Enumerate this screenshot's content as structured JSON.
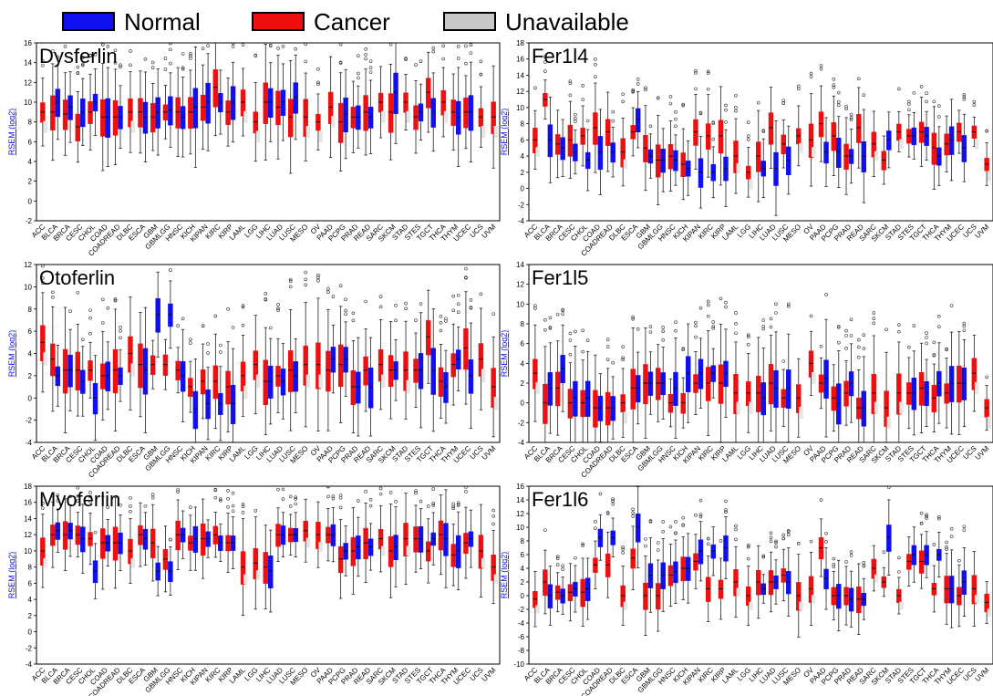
{
  "legend": [
    {
      "label": "Normal",
      "color": "#1010ee"
    },
    {
      "label": "Cancer",
      "color": "#ee1010"
    },
    {
      "label": "Unavailable",
      "color": "#c8c8c8"
    }
  ],
  "colors": {
    "normal": "#1010ee",
    "cancer": "#ee1010",
    "unavailable": "#e6e6e6"
  },
  "categories": [
    "ACC",
    "BLCA",
    "BRCA",
    "CESC",
    "CHOL",
    "COAD",
    "COADREAD",
    "DLBC",
    "ESCA",
    "GBM",
    "GBMLGG",
    "HNSC",
    "KICH",
    "KIPAN",
    "KIRC",
    "KIRP",
    "LAML",
    "LGG",
    "LIHC",
    "LUAD",
    "LUSC",
    "MESO",
    "OV",
    "PAAD",
    "PCPG",
    "PRAD",
    "READ",
    "SARC",
    "SKCM",
    "STAD",
    "STES",
    "TGCT",
    "THCA",
    "THYM",
    "UCEC",
    "UCS",
    "UVM"
  ],
  "chart_data": [
    {
      "type": "box",
      "title": "Dysferlin",
      "ylabel": "RSEM (log2)",
      "ylim": [
        -2,
        16
      ],
      "yticks": [
        "-2",
        "0",
        "2",
        "4",
        "6",
        "8",
        "10",
        "12",
        "14",
        "16"
      ],
      "normal_medians": [
        null,
        10,
        9.5,
        9,
        10,
        8.5,
        8.5,
        null,
        8.5,
        9,
        9.2,
        8.5,
        9.5,
        10,
        10,
        10,
        null,
        null,
        10,
        10,
        10.5,
        null,
        null,
        null,
        8.8,
        8.5,
        8.5,
        null,
        11,
        null,
        9,
        9,
        null,
        8.5,
        9,
        null,
        null
      ],
      "cancer_medians": [
        9,
        9,
        8.8,
        7.5,
        9,
        8.5,
        8.5,
        9,
        9,
        8.5,
        9,
        9,
        9,
        9.5,
        11.5,
        9,
        10,
        8,
        10,
        9.5,
        8.5,
        8.5,
        8,
        9.5,
        8,
        8.5,
        9,
        10,
        9,
        10,
        8.5,
        11,
        10,
        9,
        9,
        8.5,
        8.5
      ]
    },
    {
      "type": "box",
      "title": "Fer1l4",
      "ylabel": "RSEM (log2)",
      "ylim": [
        -4,
        18
      ],
      "yticks": [
        "-4",
        "-2",
        "0",
        "2",
        "4",
        "6",
        "8",
        "10",
        "12",
        "14",
        "16",
        "18"
      ],
      "normal_medians": [
        null,
        6,
        5,
        4.5,
        3.5,
        4.5,
        4.5,
        null,
        8.5,
        4,
        3.5,
        3.5,
        2.5,
        2,
        2,
        2.5,
        null,
        null,
        2.5,
        2.5,
        3.5,
        null,
        null,
        4.5,
        4.5,
        4,
        4,
        null,
        6,
        null,
        6.5,
        6.5,
        4,
        6,
        5,
        null,
        null
      ],
      "cancer_medians": [
        6,
        11,
        5.5,
        6,
        6.5,
        7.5,
        7,
        4.5,
        7,
        5,
        3.5,
        4,
        3,
        7,
        6.5,
        6.5,
        4,
        2,
        4,
        7.5,
        5.5,
        6.5,
        6,
        8,
        6.5,
        4,
        7.5,
        5.5,
        3.5,
        7,
        6.5,
        7,
        5,
        5.5,
        7,
        7,
        3
      ]
    },
    {
      "type": "box",
      "title": "Otoferlin",
      "ylabel": "RSEM (log2)",
      "ylim": [
        -4,
        12
      ],
      "yticks": [
        "-4",
        "-2",
        "0",
        "2",
        "4",
        "6",
        "8",
        "10",
        "12"
      ],
      "normal_medians": [
        null,
        2,
        2.5,
        1.5,
        0,
        2,
        2,
        null,
        2.5,
        7.5,
        7.5,
        2,
        -1,
        -0.5,
        -0.5,
        -0.5,
        null,
        null,
        1.5,
        1.5,
        2,
        null,
        null,
        3.5,
        3.5,
        1,
        1,
        null,
        2.5,
        null,
        2.5,
        2.5,
        1,
        3.5,
        2,
        null,
        null
      ],
      "cancer_medians": [
        5,
        3.5,
        2.5,
        2.5,
        2.5,
        2,
        2.5,
        4,
        3,
        3,
        3,
        2.5,
        1,
        1.5,
        1.5,
        1,
        2,
        3,
        1.5,
        2,
        2.5,
        3,
        3,
        2.5,
        3,
        1,
        2.5,
        3,
        2.5,
        2.5,
        2.5,
        5.5,
        1.5,
        3,
        4.5,
        3.5,
        1
      ]
    },
    {
      "type": "box",
      "title": "Fer1l5",
      "ylabel": "RSEM (log2)",
      "ylim": [
        -4,
        14
      ],
      "yticks": [
        "-4",
        "-2",
        "0",
        "2",
        "4",
        "6",
        "8",
        "10",
        "12",
        "14"
      ],
      "normal_medians": [
        null,
        1.5,
        3.5,
        0.5,
        0.5,
        -0.5,
        -0.5,
        null,
        1.5,
        2,
        2,
        1.5,
        3,
        3,
        3,
        3,
        null,
        null,
        0.5,
        1.5,
        1.5,
        null,
        null,
        2.5,
        0,
        2,
        -0.5,
        null,
        null,
        null,
        1,
        1,
        2,
        2,
        2,
        null,
        null
      ],
      "cancer_medians": [
        3,
        0,
        1.5,
        0,
        0,
        -0.5,
        -0.5,
        0,
        1.5,
        2,
        2,
        0,
        0,
        2,
        2,
        2,
        1,
        1,
        1,
        2,
        0.5,
        0.5,
        4,
        2,
        0.5,
        1,
        -0.5,
        1,
        -0.5,
        1,
        1,
        1.5,
        0.5,
        1,
        2,
        3,
        -0.5
      ]
    },
    {
      "type": "box",
      "title": "Myoferlin",
      "ylabel": "RSEM (log2)",
      "ylim": [
        -4,
        18
      ],
      "yticks": [
        "-4",
        "-2",
        "0",
        "2",
        "4",
        "6",
        "8",
        "10",
        "12",
        "14",
        "16",
        "18"
      ],
      "normal_medians": [
        null,
        12.5,
        12.5,
        11.5,
        7.5,
        11,
        11,
        null,
        11.5,
        7.5,
        7.5,
        12,
        11.5,
        11.5,
        11,
        11,
        null,
        null,
        7.5,
        12,
        12,
        null,
        null,
        12,
        10,
        10.5,
        10.5,
        null,
        10.5,
        null,
        11.5,
        11.5,
        11.5,
        10,
        11.5,
        null,
        null
      ],
      "cancer_medians": [
        10,
        12,
        12,
        12,
        11.5,
        11,
        11,
        10,
        12,
        11,
        9,
        12,
        11,
        11.5,
        12,
        11,
        8,
        8.5,
        8,
        12,
        12,
        12.5,
        12,
        12,
        9,
        10,
        11,
        11.5,
        10,
        11.5,
        11.5,
        10,
        12,
        9.5,
        11,
        10,
        8
      ]
    },
    {
      "type": "box",
      "title": "Fer1l6",
      "ylabel": "RSEM (log2)",
      "ylim": [
        -10,
        16
      ],
      "yticks": [
        "-10",
        "-8",
        "-6",
        "-4",
        "-2",
        "0",
        "2",
        "4",
        "6",
        "8",
        "10",
        "12",
        "14",
        "16"
      ],
      "normal_medians": [
        null,
        0,
        0,
        1,
        1,
        8.5,
        8.5,
        null,
        10,
        3,
        3,
        3.5,
        4,
        6.5,
        6.5,
        7,
        null,
        null,
        1,
        2,
        2,
        null,
        null,
        2.5,
        0,
        -0.5,
        -0.5,
        null,
        8.5,
        null,
        6,
        6,
        6,
        1,
        2,
        null,
        null
      ],
      "cancer_medians": [
        -0.5,
        2,
        0.5,
        0.5,
        0.5,
        4.5,
        4.5,
        0,
        5.5,
        0,
        0,
        3,
        4,
        5,
        1,
        1,
        2,
        0,
        2,
        2,
        3,
        0,
        1,
        7,
        0,
        0,
        -0.5,
        4,
        2,
        0,
        5,
        5,
        1,
        1,
        0,
        1,
        -1
      ]
    }
  ]
}
